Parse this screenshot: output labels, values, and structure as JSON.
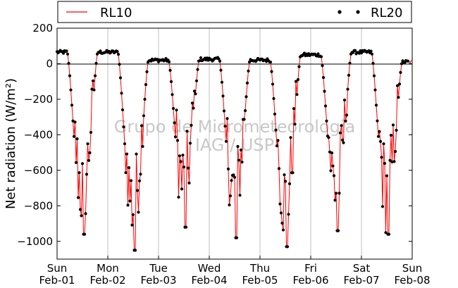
{
  "chart_data": {
    "type": "line",
    "ylabel": "Net radiation (W/m²)",
    "xlabel": "",
    "ylim": [
      -1100,
      200
    ],
    "yticks": [
      200,
      0,
      -200,
      -400,
      -600,
      -800,
      -1000
    ],
    "ytick_labels": [
      "200",
      "0",
      "−200",
      "−400",
      "−600",
      "−800",
      "−1000"
    ],
    "xlim": [
      0,
      7
    ],
    "xtick_labels": [
      {
        "day": "Sun",
        "date": "Feb-01"
      },
      {
        "day": "Mon",
        "date": "Feb-02"
      },
      {
        "day": "Tue",
        "date": "Feb-03"
      },
      {
        "day": "Wed",
        "date": "Feb-04"
      },
      {
        "day": "Thu",
        "date": "Feb-05"
      },
      {
        "day": "Fri",
        "date": "Feb-06"
      },
      {
        "day": "Sat",
        "date": "Feb-07"
      },
      {
        "day": "Sun",
        "date": "Feb-08"
      }
    ],
    "grid": "vertical",
    "zero_line": true,
    "legend": {
      "placement": "top, outside plot"
    },
    "watermark_lines": [
      "Grupo de Micrometeorologia",
      "IAG / USP"
    ],
    "series": [
      {
        "name": "RL10",
        "style": "line",
        "color": "#ff0000",
        "daily_min": [
          -960,
          -1050,
          -920,
          -980,
          -1030,
          -940,
          -960
        ],
        "night_level": [
          65,
          65,
          20,
          25,
          20,
          50,
          65,
          10
        ]
      },
      {
        "name": "RL20",
        "style": "dots",
        "color": "#000000",
        "daily_min": [
          -960,
          -1050,
          -920,
          -980,
          -1030,
          -940,
          -960
        ],
        "night_level": [
          65,
          65,
          20,
          25,
          20,
          50,
          65,
          10
        ]
      }
    ]
  }
}
